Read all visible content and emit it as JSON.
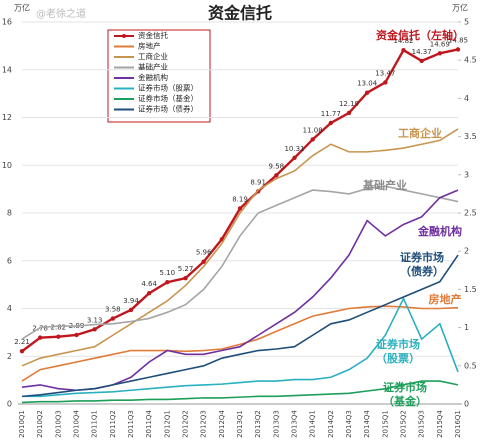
{
  "chart_data": {
    "type": "line",
    "title": "资金信托",
    "y_unit": "万亿",
    "y2_unit": "万亿",
    "watermark": "@老徐之道",
    "categories": [
      "2010Q1",
      "2010Q2",
      "2010Q3",
      "2010Q4",
      "2011Q1",
      "2011Q2",
      "2011Q3",
      "2011Q4",
      "2012Q1",
      "2012Q2",
      "2012Q3",
      "2012Q4",
      "2013Q1",
      "2013Q2",
      "2013Q3",
      "2013Q4",
      "2014Q1",
      "2014Q2",
      "2014Q3",
      "2014Q4",
      "2015Q1",
      "2015Q2",
      "2015Q3",
      "2015Q4",
      "2016Q1"
    ],
    "ylim": [
      0,
      16
    ],
    "yticks": [
      0,
      2,
      4,
      6,
      8,
      10,
      12,
      14,
      16
    ],
    "y2lim": [
      0,
      5
    ],
    "y2ticks": [
      0,
      0.5,
      1,
      1.5,
      2,
      2.5,
      3,
      3.5,
      4,
      4.5,
      5
    ],
    "grid": true,
    "series": [
      {
        "name": "资金信托",
        "color": "#c0171e",
        "markers": true,
        "values": [
          2.21,
          2.78,
          2.82,
          2.89,
          3.13,
          3.58,
          3.94,
          4.64,
          5.1,
          5.27,
          5.96,
          6.9,
          8.19,
          8.91,
          9.58,
          10.31,
          11.08,
          11.77,
          12.19,
          13.04,
          13.47,
          14.82,
          14.37,
          14.69,
          14.85
        ],
        "value_labels": [
          "2.21",
          "2.78",
          "2.82",
          "2.89",
          "3.13",
          "3.58",
          "3.94",
          "4.64",
          "5.10",
          "5.27",
          "5.96",
          null,
          "8.19",
          "8.91",
          "9.58",
          "10.31",
          "11.08",
          "11.77",
          "12.19",
          "13.04",
          "13.47",
          "14.82",
          "14.37",
          "14.69",
          "14.85"
        ]
      },
      {
        "name": "房地产",
        "color": "#e07b39",
        "axis": "y2",
        "values": [
          0.3,
          0.45,
          0.5,
          0.55,
          0.6,
          0.65,
          0.7,
          0.7,
          0.7,
          0.69,
          0.7,
          0.72,
          0.78,
          0.85,
          0.95,
          1.05,
          1.15,
          1.2,
          1.25,
          1.27,
          1.28,
          1.27,
          1.25,
          1.25,
          1.26
        ]
      },
      {
        "name": "工商企业",
        "color": "#c89550",
        "axis": "y2",
        "values": [
          0.5,
          0.6,
          0.65,
          0.7,
          0.75,
          0.9,
          1.05,
          1.2,
          1.35,
          1.55,
          1.8,
          2.1,
          2.5,
          2.8,
          2.95,
          3.05,
          3.25,
          3.4,
          3.3,
          3.3,
          3.32,
          3.35,
          3.4,
          3.45,
          3.6
        ]
      },
      {
        "name": "基础产业",
        "color": "#a5a5a5",
        "axis": "y2",
        "values": [
          0.85,
          1.0,
          1.02,
          1.02,
          1.04,
          1.05,
          1.08,
          1.12,
          1.2,
          1.3,
          1.5,
          1.8,
          2.2,
          2.5,
          2.6,
          2.7,
          2.8,
          2.78,
          2.75,
          2.82,
          2.85,
          2.8,
          2.75,
          2.7,
          2.65
        ]
      },
      {
        "name": "金融机构",
        "color": "#7030a0",
        "axis": "y2",
        "values": [
          0.22,
          0.25,
          0.2,
          0.18,
          0.2,
          0.25,
          0.35,
          0.55,
          0.7,
          0.65,
          0.65,
          0.7,
          0.75,
          0.9,
          1.05,
          1.2,
          1.4,
          1.65,
          1.95,
          2.4,
          2.2,
          2.35,
          2.45,
          2.7,
          2.8
        ]
      },
      {
        "name": "证券市场（股票）",
        "color": "#2ab0c0",
        "axis": "y2",
        "values": [
          0.1,
          0.1,
          0.12,
          0.14,
          0.15,
          0.16,
          0.18,
          0.2,
          0.22,
          0.24,
          0.25,
          0.26,
          0.28,
          0.3,
          0.3,
          0.32,
          0.32,
          0.35,
          0.45,
          0.6,
          0.9,
          1.38,
          0.85,
          1.05,
          0.42
        ]
      },
      {
        "name": "证券市场（基金）",
        "color": "#1e9e5a",
        "axis": "y2",
        "values": [
          0.02,
          0.03,
          0.03,
          0.04,
          0.04,
          0.05,
          0.05,
          0.06,
          0.06,
          0.07,
          0.08,
          0.08,
          0.09,
          0.1,
          0.1,
          0.11,
          0.12,
          0.13,
          0.14,
          0.17,
          0.2,
          0.25,
          0.3,
          0.3,
          0.25
        ]
      },
      {
        "name": "证券市场（债券）",
        "color": "#1f4e79",
        "axis": "y2",
        "values": [
          0.1,
          0.12,
          0.15,
          0.18,
          0.2,
          0.25,
          0.3,
          0.35,
          0.4,
          0.45,
          0.5,
          0.6,
          0.65,
          0.7,
          0.72,
          0.75,
          0.9,
          1.05,
          1.1,
          1.2,
          1.3,
          1.4,
          1.5,
          1.6,
          1.95
        ]
      }
    ],
    "annotations": [
      {
        "lines": [
          "资金信托（左轴）"
        ],
        "color": "#c0171e"
      },
      {
        "lines": [
          "工商企业"
        ],
        "color": "#c89550"
      },
      {
        "lines": [
          "基础产业"
        ],
        "color": "#8a8a8a"
      },
      {
        "lines": [
          "金融机构"
        ],
        "color": "#7030a0"
      },
      {
        "lines": [
          "证券市场",
          "（债券）"
        ],
        "color": "#1f4e79"
      },
      {
        "lines": [
          "房地产"
        ],
        "color": "#e07b39"
      },
      {
        "lines": [
          "证券市场",
          "（股票）"
        ],
        "color": "#2ab0c0"
      },
      {
        "lines": [
          "证券市场",
          "（基金）"
        ],
        "color": "#1e9e5a"
      }
    ]
  }
}
